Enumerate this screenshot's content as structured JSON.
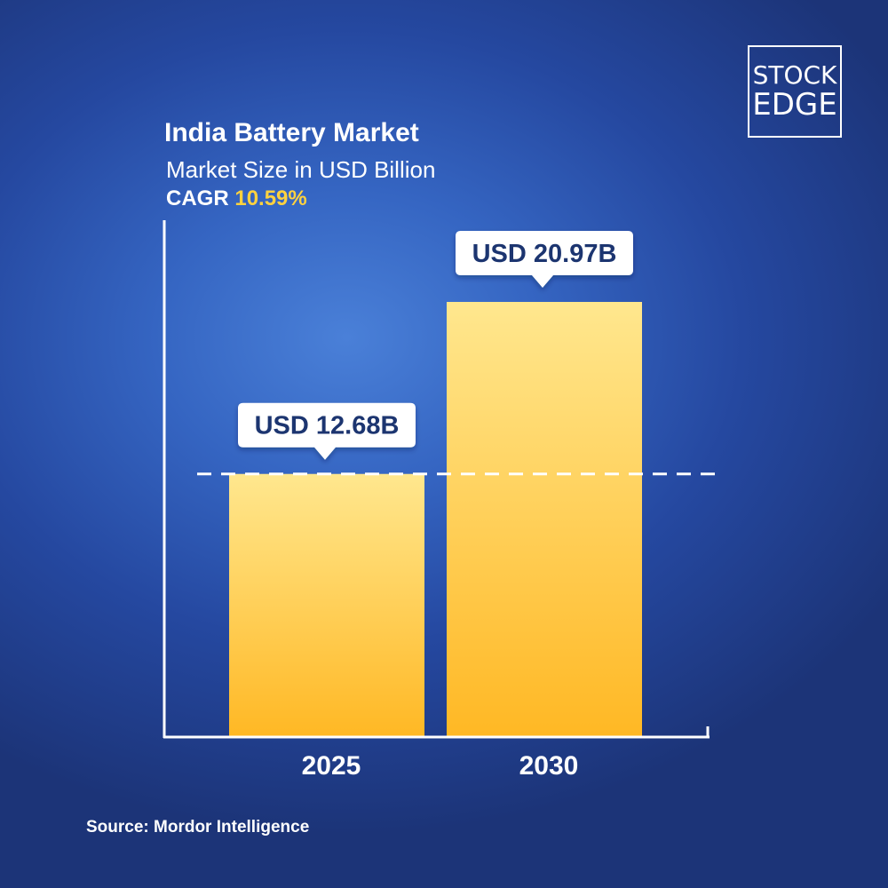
{
  "header": {
    "title": "India Battery Market",
    "subtitle": "Market Size in USD Billion",
    "cagr_label": "CAGR",
    "cagr_value": "10.59%"
  },
  "logo": {
    "line1": "STOCK",
    "line2": "EDGE"
  },
  "source": "Source: Mordor Intelligence",
  "colors": {
    "background": "#2a52a8",
    "bar_top": "#ffe78e",
    "bar_bottom": "#ffb824",
    "accent": "#ffd23f",
    "label_text": "#1c3470"
  },
  "chart_data": {
    "type": "bar",
    "title": "India Battery Market",
    "subtitle": "Market Size in USD Billion",
    "categories": [
      "2025",
      "2030"
    ],
    "values": [
      12.68,
      20.97
    ],
    "data_labels": [
      "USD 12.68B",
      "USD 20.97B"
    ],
    "reference_line": {
      "value": 12.68,
      "style": "dashed"
    },
    "xlabel": "",
    "ylabel": "",
    "y_axis_ticks": false,
    "grid": false
  }
}
